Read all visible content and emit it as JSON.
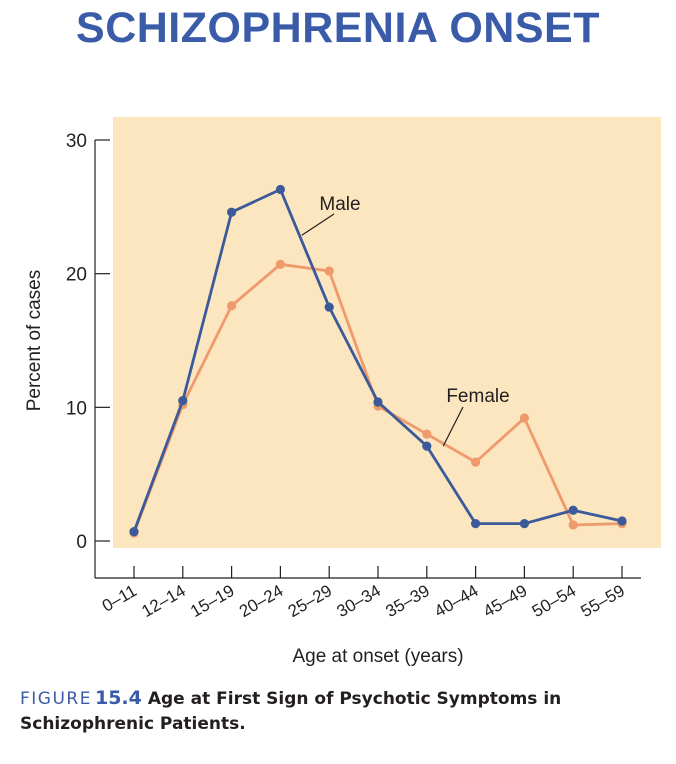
{
  "heading": "SCHIZOPHRENIA ONSET",
  "caption": {
    "figure_word": "FIGURE",
    "figure_number": "15.4",
    "title": "Age at First Sign of Psychotic Symptoms in Schizophrenic Patients."
  },
  "colors": {
    "heading": "#3a5ba8",
    "plot_background": "#fbe6bf",
    "male": "#3c5a9a",
    "female": "#ef9a6c",
    "axis": "#231f20"
  },
  "chart_data": {
    "type": "line",
    "xlabel": "Age at onset (years)",
    "ylabel": "Percent of cases",
    "ylim": [
      0,
      30
    ],
    "yticks": [
      0,
      10,
      20,
      30
    ],
    "grid": false,
    "categories": [
      "0–11",
      "12–14",
      "15–19",
      "20–24",
      "25–29",
      "30–34",
      "35–39",
      "40–44",
      "45–49",
      "50–54",
      "55–59"
    ],
    "series": [
      {
        "name": "Male",
        "color": "#3c5a9a",
        "values": [
          0.7,
          10.5,
          24.6,
          26.3,
          17.5,
          10.4,
          7.1,
          1.3,
          1.3,
          2.3,
          1.5
        ]
      },
      {
        "name": "Female",
        "color": "#ef9a6c",
        "values": [
          0.6,
          10.2,
          17.6,
          20.7,
          20.2,
          10.1,
          8.0,
          5.9,
          9.2,
          1.2,
          1.3
        ]
      }
    ]
  }
}
